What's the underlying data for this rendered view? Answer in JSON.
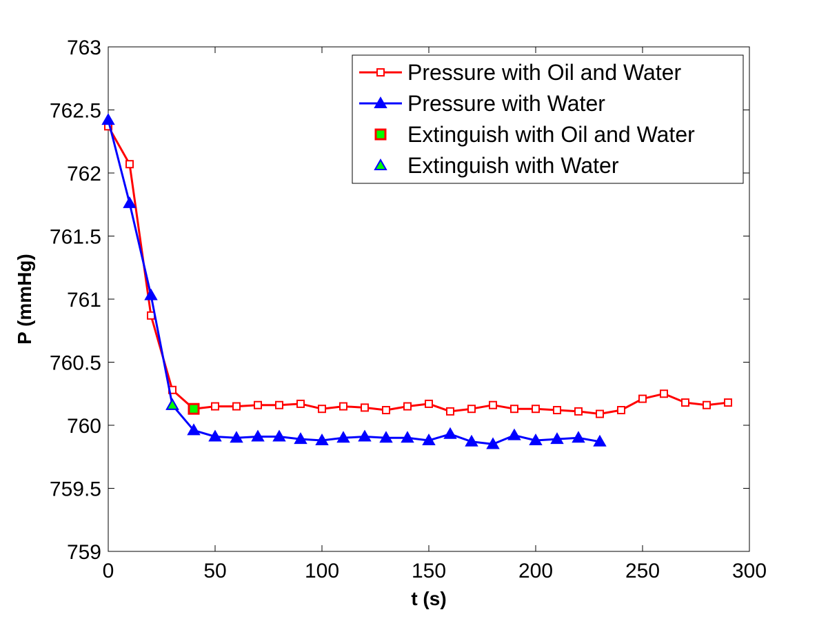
{
  "chart_data": {
    "type": "line",
    "title": "",
    "xlabel": "t (s)",
    "ylabel": "P (mmHg)",
    "xlim": [
      0,
      300
    ],
    "ylim": [
      759,
      763
    ],
    "xticks": [
      0,
      50,
      100,
      150,
      200,
      250,
      300
    ],
    "yticks": [
      759,
      759.5,
      760,
      760.5,
      761,
      761.5,
      762,
      762.5,
      763
    ],
    "xtick_labels": [
      "0",
      "50",
      "100",
      "150",
      "200",
      "250",
      "300"
    ],
    "ytick_labels": [
      "759",
      "759.5",
      "760",
      "760.5",
      "761",
      "761.5",
      "762",
      "762.5",
      "763"
    ],
    "grid": false,
    "legend_position": "top-right",
    "series": [
      {
        "name": "Pressure with Oil and Water",
        "color": "#ff0000",
        "marker": "square-open",
        "x": [
          0,
          10,
          20,
          30,
          40,
          50,
          60,
          70,
          80,
          90,
          100,
          110,
          120,
          130,
          140,
          150,
          160,
          170,
          180,
          190,
          200,
          210,
          220,
          230,
          240,
          250,
          260,
          270,
          280,
          290
        ],
        "y": [
          762.37,
          762.07,
          760.87,
          760.28,
          760.13,
          760.15,
          760.15,
          760.16,
          760.16,
          760.17,
          760.13,
          760.15,
          760.14,
          760.12,
          760.15,
          760.17,
          760.11,
          760.13,
          760.16,
          760.13,
          760.13,
          760.12,
          760.11,
          760.09,
          760.12,
          760.21,
          760.25,
          760.18,
          760.16,
          760.18
        ]
      },
      {
        "name": "Pressure with Water",
        "color": "#0000ff",
        "marker": "triangle-filled",
        "x": [
          0,
          10,
          20,
          30,
          40,
          50,
          60,
          70,
          80,
          90,
          100,
          110,
          120,
          130,
          140,
          150,
          160,
          170,
          180,
          190,
          200,
          210,
          220,
          230
        ],
        "y": [
          762.42,
          761.76,
          761.03,
          760.16,
          759.96,
          759.91,
          759.9,
          759.91,
          759.91,
          759.89,
          759.88,
          759.9,
          759.91,
          759.9,
          759.9,
          759.88,
          759.93,
          759.87,
          759.85,
          759.92,
          759.88,
          759.89,
          759.9,
          759.87
        ]
      },
      {
        "name": "Extinguish with Oil and Water",
        "color": "#ff0000",
        "fill": "#00ff00",
        "marker": "square-filled",
        "x": [
          40
        ],
        "y": [
          760.13
        ]
      },
      {
        "name": "Extinguish with Water",
        "color": "#0000ff",
        "fill": "#00ff00",
        "marker": "triangle-filled",
        "x": [
          30
        ],
        "y": [
          760.16
        ]
      }
    ]
  }
}
